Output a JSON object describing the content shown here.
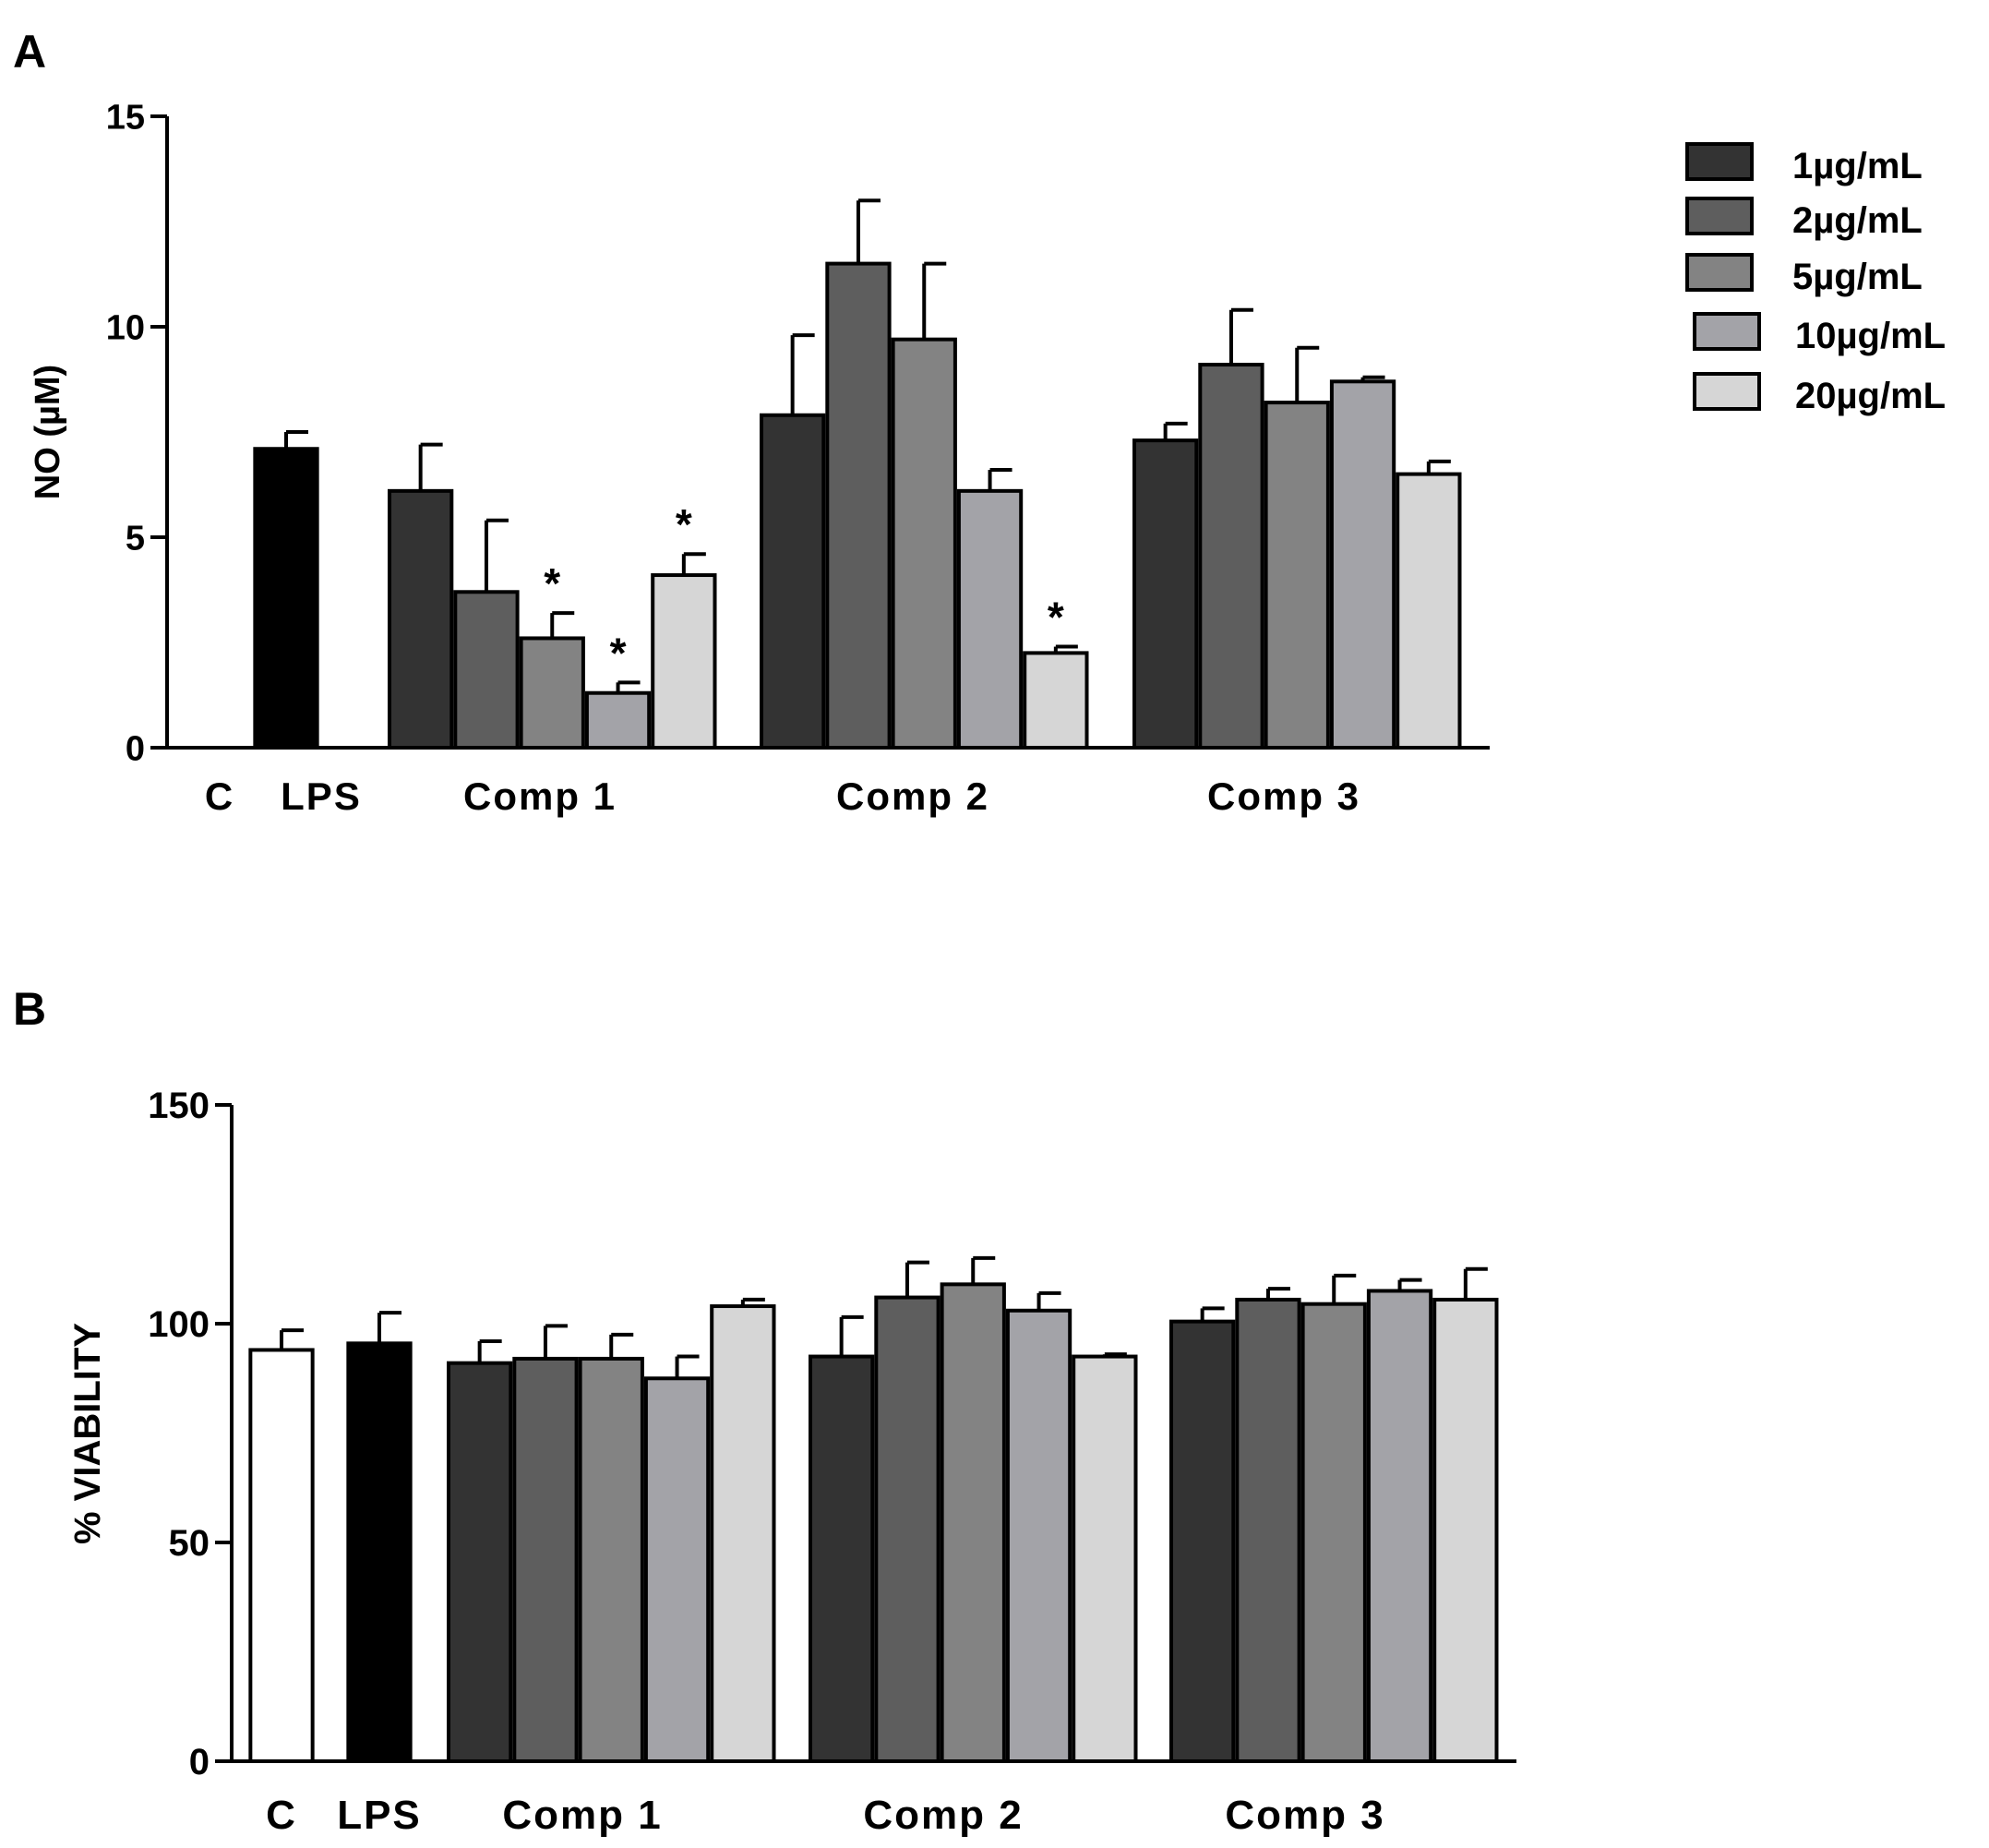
{
  "chart_data": [
    {
      "panel": "A",
      "type": "bar",
      "ylabel": "NO (µM)",
      "ylim": [
        0,
        15
      ],
      "yticks": [
        0,
        5,
        10,
        15
      ],
      "groups": [
        "C",
        "LPS",
        "Comp 1",
        "Comp 2",
        "Comp 3"
      ],
      "controls": [
        {
          "name": "C",
          "value": 0,
          "error": 0,
          "color": "#ffffff"
        },
        {
          "name": "LPS",
          "value": 7.1,
          "error": 0.4,
          "color": "#000000"
        }
      ],
      "series": [
        {
          "name": "1µg/mL",
          "color": "#333333",
          "values": [
            6.1,
            7.9,
            7.3
          ],
          "errors": [
            1.1,
            1.9,
            0.4
          ],
          "sig": [
            false,
            false,
            false
          ]
        },
        {
          "name": "2µg/mL",
          "color": "#5e5e5e",
          "values": [
            3.7,
            11.5,
            9.1
          ],
          "errors": [
            1.7,
            1.5,
            1.3
          ],
          "sig": [
            false,
            false,
            false
          ]
        },
        {
          "name": "5µg/mL",
          "color": "#838383",
          "values": [
            2.6,
            9.7,
            8.2
          ],
          "errors": [
            0.6,
            1.8,
            1.3
          ],
          "sig": [
            true,
            false,
            false
          ]
        },
        {
          "name": "10µg/mL",
          "color": "#a3a3a8",
          "values": [
            1.3,
            6.1,
            8.7
          ],
          "errors": [
            0.25,
            0.5,
            0.1
          ],
          "sig": [
            true,
            false,
            false
          ]
        },
        {
          "name": "20µg/mL",
          "color": "#d6d6d6",
          "values": [
            4.1,
            2.25,
            6.5
          ],
          "errors": [
            0.5,
            0.15,
            0.3
          ],
          "sig": [
            true,
            true,
            false
          ]
        }
      ],
      "sig_marker": "*"
    },
    {
      "panel": "B",
      "type": "bar",
      "ylabel": "% VIABILITY",
      "ylim": [
        0,
        150
      ],
      "yticks": [
        0,
        50,
        100,
        150
      ],
      "groups": [
        "C",
        "LPS",
        "Comp 1",
        "Comp 2",
        "Comp 3"
      ],
      "controls": [
        {
          "name": "C",
          "value": 94,
          "error": 4.5,
          "color": "#ffffff"
        },
        {
          "name": "LPS",
          "value": 95.5,
          "error": 7,
          "color": "#000000"
        }
      ],
      "series": [
        {
          "name": "1µg/mL",
          "color": "#333333",
          "values": [
            91,
            92.5,
            100.5
          ],
          "errors": [
            5,
            9,
            3
          ]
        },
        {
          "name": "2µg/mL",
          "color": "#5e5e5e",
          "values": [
            92,
            106,
            105.5
          ],
          "errors": [
            7.5,
            8,
            2.5
          ]
        },
        {
          "name": "5µg/mL",
          "color": "#838383",
          "values": [
            92,
            109,
            104.5
          ],
          "errors": [
            5.5,
            6,
            6.5
          ]
        },
        {
          "name": "10µg/mL",
          "color": "#a3a3a8",
          "values": [
            87.5,
            103,
            107.5
          ],
          "errors": [
            5,
            4,
            2.5
          ]
        },
        {
          "name": "20µg/mL",
          "color": "#d6d6d6",
          "values": [
            104,
            92.5,
            105.5
          ],
          "errors": [
            1.5,
            0.5,
            7
          ]
        }
      ]
    }
  ],
  "legend": {
    "items": [
      {
        "label": "1µg/mL",
        "color": "#333333"
      },
      {
        "label": "2µg/mL",
        "color": "#5e5e5e"
      },
      {
        "label": "5µg/mL",
        "color": "#838383"
      },
      {
        "label": "10µg/mL",
        "color": "#a3a3a8"
      },
      {
        "label": "20µg/mL",
        "color": "#d6d6d6"
      }
    ]
  }
}
